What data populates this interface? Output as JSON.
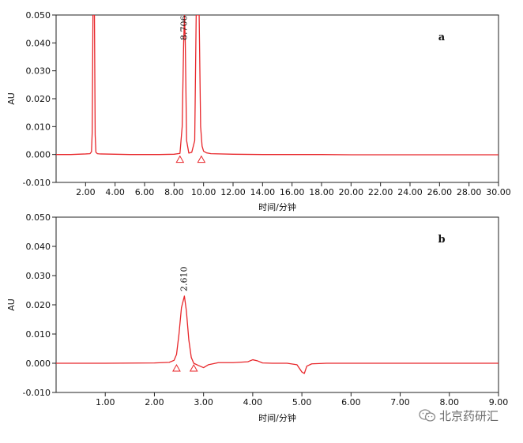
{
  "chart_data": [
    {
      "panel_label": "a",
      "type": "line",
      "xlabel": "时间/分钟",
      "ylabel": "AU",
      "xlim": [
        0.0,
        30.0
      ],
      "ylim": [
        -0.01,
        0.05
      ],
      "x_ticks": [
        2,
        4,
        6,
        8,
        10,
        12,
        14,
        16,
        18,
        20,
        22,
        24,
        26,
        28,
        30
      ],
      "x_tick_labels": [
        "2.00",
        "4.00",
        "6.00",
        "8.00",
        "10.00",
        "12.00",
        "14.00",
        "16.00",
        "18.00",
        "20.00",
        "22.00",
        "24.00",
        "26.00",
        "28.00",
        "30.00"
      ],
      "y_ticks": [
        -0.01,
        0.0,
        0.01,
        0.02,
        0.03,
        0.04,
        0.05
      ],
      "y_tick_labels": [
        "-0.010",
        "0.000",
        "0.010",
        "0.020",
        "0.030",
        "0.040",
        "0.050"
      ],
      "line_color": "#e8262a",
      "series": [
        {
          "x": [
            0.0,
            1.0,
            2.0,
            2.3,
            2.4,
            2.45,
            2.5,
            2.55,
            2.6,
            2.65,
            2.7,
            2.8,
            3.0,
            5.0,
            7.0,
            8.0,
            8.4,
            8.55,
            8.65,
            8.706,
            8.76,
            8.85,
            9.0,
            9.2,
            9.4,
            9.5,
            9.6,
            9.7,
            9.8,
            9.9,
            10.0,
            10.2,
            10.5,
            12.0,
            14.0,
            16.0,
            18.0,
            20.0,
            22.0,
            24.0,
            26.0,
            28.0,
            30.0
          ],
          "y": [
            0.0,
            0.0,
            0.0002,
            0.0003,
            0.001,
            0.008,
            0.05,
            0.05,
            0.05,
            0.007,
            0.0008,
            0.0003,
            0.0002,
            0.0,
            0.0,
            0.0001,
            0.0004,
            0.01,
            0.04,
            0.05,
            0.04,
            0.005,
            0.0005,
            0.0008,
            0.005,
            0.05,
            0.05,
            0.05,
            0.01,
            0.003,
            0.0012,
            0.0006,
            0.0003,
            0.0001,
            0.0,
            0.0,
            0.0,
            -0.0001,
            -0.0001,
            -0.0001,
            -0.0001,
            -0.0001,
            -0.0001
          ]
        }
      ],
      "peak_annotations": [
        {
          "x": 8.706,
          "label": "8.706"
        }
      ],
      "integration_markers": [
        8.4,
        9.85
      ]
    },
    {
      "panel_label": "b",
      "type": "line",
      "xlabel": "时间/分钟",
      "ylabel": "AU",
      "xlim": [
        0.0,
        9.0
      ],
      "ylim": [
        -0.01,
        0.05
      ],
      "x_ticks": [
        1,
        2,
        3,
        4,
        5,
        6,
        7,
        8,
        9
      ],
      "x_tick_labels": [
        "1.00",
        "2.00",
        "3.00",
        "4.00",
        "5.00",
        "6.00",
        "7.00",
        "8.00",
        "9.00"
      ],
      "y_ticks": [
        -0.01,
        0.0,
        0.01,
        0.02,
        0.03,
        0.04,
        0.05
      ],
      "y_tick_labels": [
        "-0.010",
        "0.000",
        "0.010",
        "0.020",
        "0.030",
        "0.040",
        "0.050"
      ],
      "line_color": "#e8262a",
      "series": [
        {
          "x": [
            0.0,
            1.0,
            2.0,
            2.3,
            2.4,
            2.45,
            2.5,
            2.55,
            2.61,
            2.65,
            2.7,
            2.75,
            2.8,
            2.9,
            3.0,
            3.1,
            3.3,
            3.6,
            3.9,
            4.0,
            4.1,
            4.2,
            4.4,
            4.7,
            4.9,
            5.0,
            5.05,
            5.1,
            5.2,
            5.5,
            6.0,
            7.0,
            8.0,
            9.0
          ],
          "y": [
            0.0,
            0.0,
            0.0001,
            0.0003,
            0.001,
            0.003,
            0.01,
            0.019,
            0.023,
            0.018,
            0.008,
            0.002,
            0.0,
            -0.0008,
            -0.0015,
            -0.0005,
            0.0002,
            0.0002,
            0.0005,
            0.0012,
            0.0008,
            0.0001,
            0.0,
            0.0,
            -0.0005,
            -0.003,
            -0.0035,
            -0.001,
            -0.0002,
            0.0,
            0.0,
            0.0,
            0.0,
            0.0
          ]
        }
      ],
      "peak_annotations": [
        {
          "x": 2.61,
          "label": "2.610"
        }
      ],
      "integration_markers": [
        2.45,
        2.8
      ]
    }
  ],
  "watermark": {
    "text": "北京药研汇",
    "icon": "wechat-icon"
  }
}
